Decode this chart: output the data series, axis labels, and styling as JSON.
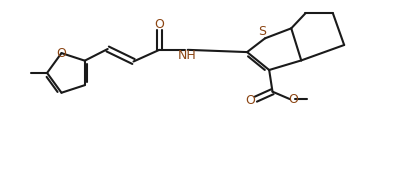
{
  "bg_color": "#ffffff",
  "bond_color": "#1a1a1a",
  "heteroatom_color": "#8B4513",
  "line_width": 1.5,
  "figsize": [
    4.05,
    1.75
  ],
  "dpi": 100,
  "xlim": [
    0,
    9.5
  ],
  "ylim": [
    0,
    4.2
  ]
}
